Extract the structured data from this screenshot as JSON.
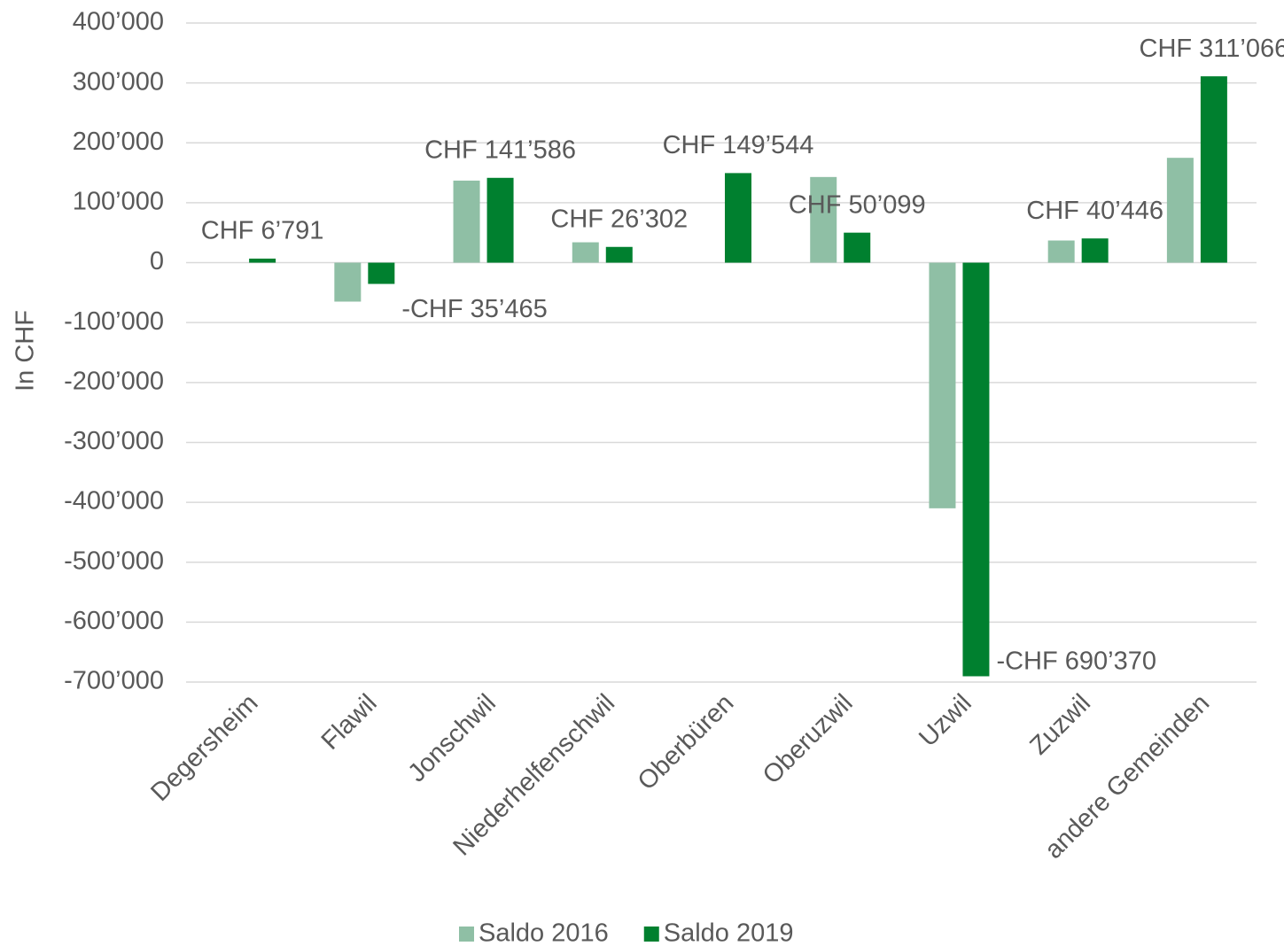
{
  "chart_data": {
    "type": "bar",
    "y_label": "In CHF",
    "categories": [
      "Degersheim",
      "Flawil",
      "Jonschwil",
      "Niederhelfenschwil",
      "Oberbüren",
      "Oberuzwil",
      "Uzwil",
      "Zuzwil",
      "andere Gemeinden"
    ],
    "series": [
      {
        "name": "Saldo 2016",
        "color": "#8fbfa5",
        "values": [
          0,
          -65000,
          137000,
          34000,
          0,
          143000,
          -410000,
          37000,
          175000
        ]
      },
      {
        "name": "Saldo 2019",
        "color": "#00802f",
        "values": [
          6791,
          -35465,
          141586,
          26302,
          149544,
          50099,
          -690370,
          40446,
          311066
        ],
        "value_labels": [
          "CHF 6’791",
          "-CHF 35’465",
          "CHF 141’586",
          "CHF 26’302",
          "CHF 149’544",
          "CHF 50’099",
          "-CHF 690’370",
          "CHF 40’446",
          "CHF 311’066"
        ]
      }
    ],
    "ylim": [
      -700000,
      400000
    ],
    "yticks": [
      {
        "value": 400000,
        "label": "400’000"
      },
      {
        "value": 300000,
        "label": "300’000"
      },
      {
        "value": 200000,
        "label": "200’000"
      },
      {
        "value": 100000,
        "label": "100’000"
      },
      0,
      {
        "value": -100000,
        "label": "-100’000"
      },
      {
        "value": -200000,
        "label": "-200’000"
      },
      {
        "value": -300000,
        "label": "-300’000"
      },
      {
        "value": -400000,
        "label": "-400’000"
      },
      {
        "value": -500000,
        "label": "-500’000"
      },
      {
        "value": -600000,
        "label": "-600’000"
      },
      {
        "value": -700000,
        "label": "-700’000"
      }
    ],
    "grid": true,
    "legend": "bottom"
  }
}
